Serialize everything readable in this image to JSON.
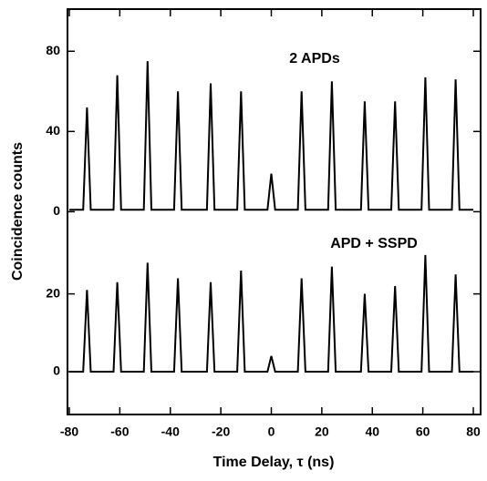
{
  "chart_data": [
    {
      "type": "line",
      "annotation": "2 APDs",
      "ylabel": "Coincidence counts",
      "color": "#000000",
      "xlim": [
        -80,
        80
      ],
      "ylim": [
        -8,
        101
      ],
      "yticks": [
        0,
        40,
        80
      ],
      "x": [
        -80,
        -74.5,
        -73,
        -71.5,
        -62.5,
        -61,
        -59.5,
        -50.5,
        -49,
        -47.5,
        -38.5,
        -37,
        -35.5,
        -25.5,
        -24,
        -22.5,
        -13.5,
        -12,
        -10.5,
        -1.5,
        0,
        1.5,
        10.5,
        12,
        13.5,
        22.5,
        24,
        25.5,
        35.5,
        37,
        38.5,
        47.5,
        49,
        50.5,
        59.5,
        61,
        62.5,
        71.5,
        73,
        74.5,
        80
      ],
      "values": [
        1,
        1,
        52,
        1,
        1,
        68,
        1,
        1,
        75,
        1,
        1,
        60,
        1,
        1,
        64,
        1,
        1,
        60,
        1,
        1,
        19,
        1,
        1,
        60,
        1,
        1,
        65,
        1,
        1,
        55,
        1,
        1,
        55,
        1,
        1,
        67,
        1,
        1,
        66,
        1,
        1
      ]
    },
    {
      "type": "line",
      "annotation": "APD + SSPD",
      "xlabel": "Time Delay, τ (ns)",
      "color": "#000000",
      "xlim": [
        -80,
        80
      ],
      "xticks": [
        -80,
        -60,
        -40,
        -20,
        0,
        20,
        40,
        60,
        80
      ],
      "ylim": [
        -11,
        37
      ],
      "yticks": [
        0,
        20
      ],
      "x": [
        -80,
        -74.5,
        -73,
        -71.5,
        -62.5,
        -61,
        -59.5,
        -50.5,
        -49,
        -47.5,
        -38.5,
        -37,
        -35.5,
        -25.5,
        -24,
        -22.5,
        -13.5,
        -12,
        -10.5,
        -1.5,
        0,
        1.5,
        10.5,
        12,
        13.5,
        22.5,
        24,
        25.5,
        35.5,
        37,
        38.5,
        47.5,
        49,
        50.5,
        59.5,
        61,
        62.5,
        71.5,
        73,
        74.5,
        80
      ],
      "values": [
        0,
        0,
        21,
        0,
        0,
        23,
        0,
        0,
        28,
        0,
        0,
        24,
        0,
        0,
        23,
        0,
        0,
        26,
        0,
        0,
        4,
        0,
        0,
        24,
        0,
        0,
        27,
        0,
        0,
        20,
        0,
        0,
        22,
        0,
        0,
        30,
        0,
        0,
        25,
        0,
        0
      ]
    }
  ]
}
